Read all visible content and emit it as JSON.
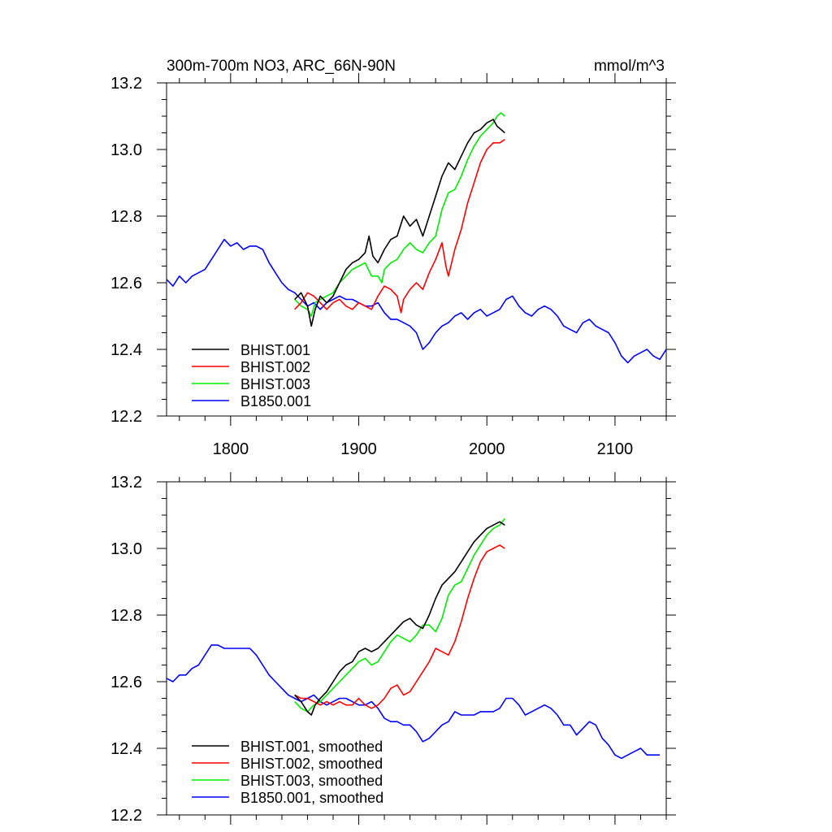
{
  "chart_data": [
    {
      "type": "line",
      "title": "300m-700m NO3, ARC_66N-90N",
      "units": "mmol/m^3",
      "xlim": [
        1750,
        2140
      ],
      "ylim": [
        12.2,
        13.2
      ],
      "x_ticks": [
        1800,
        1900,
        2000,
        2100
      ],
      "y_ticks": [
        12.2,
        12.4,
        12.6,
        12.8,
        13.0,
        13.2
      ],
      "legend_position": "bottom-left",
      "grid": false,
      "series": [
        {
          "name": "BHIST.001",
          "color": "#000000",
          "x": [
            1850,
            1855,
            1860,
            1863,
            1866,
            1870,
            1875,
            1880,
            1885,
            1890,
            1895,
            1900,
            1905,
            1908,
            1911,
            1915,
            1920,
            1925,
            1930,
            1935,
            1940,
            1945,
            1950,
            1955,
            1960,
            1965,
            1970,
            1975,
            1980,
            1985,
            1990,
            1995,
            2000,
            2005,
            2008,
            2011,
            2014
          ],
          "y": [
            12.55,
            12.57,
            12.53,
            12.47,
            12.52,
            12.56,
            12.54,
            12.56,
            12.6,
            12.64,
            12.66,
            12.67,
            12.69,
            12.74,
            12.68,
            12.66,
            12.7,
            12.73,
            12.74,
            12.8,
            12.77,
            12.79,
            12.74,
            12.8,
            12.86,
            12.92,
            12.96,
            12.94,
            12.98,
            13.02,
            13.05,
            13.06,
            13.08,
            13.09,
            13.07,
            13.06,
            13.05
          ]
        },
        {
          "name": "BHIST.002",
          "color": "#ff0000",
          "x": [
            1850,
            1855,
            1860,
            1865,
            1870,
            1875,
            1880,
            1885,
            1890,
            1895,
            1900,
            1905,
            1910,
            1915,
            1920,
            1925,
            1930,
            1933,
            1935,
            1940,
            1945,
            1950,
            1955,
            1960,
            1965,
            1968,
            1970,
            1975,
            1980,
            1985,
            1990,
            1995,
            2000,
            2005,
            2010,
            2014
          ],
          "y": [
            12.52,
            12.54,
            12.57,
            12.56,
            12.54,
            12.52,
            12.54,
            12.55,
            12.53,
            12.52,
            12.54,
            12.53,
            12.52,
            12.56,
            12.59,
            12.58,
            12.56,
            12.51,
            12.55,
            12.58,
            12.6,
            12.58,
            12.63,
            12.67,
            12.72,
            12.65,
            12.62,
            12.7,
            12.76,
            12.84,
            12.9,
            12.96,
            13.0,
            13.02,
            13.02,
            13.03
          ]
        },
        {
          "name": "BHIST.003",
          "color": "#00ee00",
          "x": [
            1850,
            1855,
            1860,
            1863,
            1866,
            1870,
            1875,
            1880,
            1885,
            1890,
            1895,
            1900,
            1905,
            1910,
            1915,
            1918,
            1920,
            1925,
            1930,
            1935,
            1940,
            1945,
            1950,
            1955,
            1960,
            1965,
            1970,
            1975,
            1980,
            1985,
            1990,
            1995,
            2000,
            2005,
            2008,
            2011,
            2014
          ],
          "y": [
            12.55,
            12.53,
            12.52,
            12.5,
            12.54,
            12.55,
            12.56,
            12.57,
            12.6,
            12.62,
            12.64,
            12.65,
            12.66,
            12.62,
            12.62,
            12.6,
            12.64,
            12.66,
            12.67,
            12.7,
            12.72,
            12.7,
            12.69,
            12.72,
            12.74,
            12.82,
            12.87,
            12.88,
            12.92,
            12.97,
            13.01,
            13.04,
            13.06,
            13.08,
            13.1,
            13.11,
            13.1
          ]
        },
        {
          "name": "B1850.001",
          "color": "#0000ff",
          "x": [
            1750,
            1755,
            1760,
            1765,
            1770,
            1775,
            1780,
            1785,
            1790,
            1795,
            1800,
            1805,
            1810,
            1815,
            1820,
            1825,
            1830,
            1835,
            1840,
            1845,
            1850,
            1855,
            1860,
            1865,
            1870,
            1875,
            1880,
            1885,
            1890,
            1895,
            1900,
            1905,
            1910,
            1915,
            1920,
            1925,
            1930,
            1935,
            1940,
            1945,
            1950,
            1955,
            1960,
            1965,
            1970,
            1975,
            1980,
            1985,
            1990,
            1995,
            2000,
            2005,
            2010,
            2015,
            2020,
            2025,
            2030,
            2035,
            2040,
            2045,
            2050,
            2055,
            2060,
            2065,
            2070,
            2075,
            2080,
            2085,
            2090,
            2095,
            2100,
            2105,
            2110,
            2115,
            2120,
            2125,
            2130,
            2135,
            2140
          ],
          "y": [
            12.61,
            12.59,
            12.62,
            12.6,
            12.62,
            12.63,
            12.64,
            12.67,
            12.7,
            12.73,
            12.71,
            12.72,
            12.7,
            12.71,
            12.71,
            12.7,
            12.66,
            12.63,
            12.6,
            12.58,
            12.57,
            12.55,
            12.53,
            12.54,
            12.52,
            12.54,
            12.55,
            12.56,
            12.55,
            12.55,
            12.54,
            12.53,
            12.53,
            12.54,
            12.51,
            12.49,
            12.49,
            12.48,
            12.47,
            12.45,
            12.4,
            12.42,
            12.45,
            12.47,
            12.48,
            12.5,
            12.51,
            12.49,
            12.51,
            12.52,
            12.5,
            12.51,
            12.52,
            12.55,
            12.56,
            12.53,
            12.51,
            12.5,
            12.52,
            12.53,
            12.52,
            12.5,
            12.47,
            12.46,
            12.45,
            12.48,
            12.49,
            12.47,
            12.46,
            12.45,
            12.42,
            12.38,
            12.36,
            12.38,
            12.39,
            12.4,
            12.38,
            12.37,
            12.4
          ]
        }
      ]
    },
    {
      "type": "line",
      "xlim": [
        1750,
        2140
      ],
      "ylim": [
        12.2,
        13.2
      ],
      "y_ticks": [
        12.2,
        12.4,
        12.6,
        12.8,
        13.0,
        13.2
      ],
      "legend_position": "bottom-left",
      "grid": false,
      "series": [
        {
          "name": "BHIST.001, smoothed",
          "color": "#000000",
          "x": [
            1850,
            1855,
            1860,
            1863,
            1866,
            1870,
            1875,
            1880,
            1885,
            1890,
            1895,
            1900,
            1905,
            1910,
            1915,
            1920,
            1925,
            1930,
            1935,
            1940,
            1945,
            1950,
            1955,
            1960,
            1965,
            1970,
            1975,
            1980,
            1985,
            1990,
            1995,
            2000,
            2005,
            2010,
            2014
          ],
          "y": [
            12.56,
            12.54,
            12.51,
            12.5,
            12.53,
            12.55,
            12.57,
            12.6,
            12.63,
            12.65,
            12.66,
            12.69,
            12.7,
            12.69,
            12.7,
            12.72,
            12.74,
            12.76,
            12.78,
            12.79,
            12.77,
            12.76,
            12.8,
            12.85,
            12.89,
            12.91,
            12.93,
            12.96,
            12.99,
            13.02,
            13.04,
            13.06,
            13.07,
            13.08,
            13.07
          ]
        },
        {
          "name": "BHIST.002, smoothed",
          "color": "#ff0000",
          "x": [
            1850,
            1855,
            1860,
            1865,
            1870,
            1875,
            1880,
            1885,
            1890,
            1895,
            1900,
            1905,
            1910,
            1915,
            1920,
            1925,
            1930,
            1935,
            1940,
            1945,
            1950,
            1955,
            1960,
            1965,
            1970,
            1975,
            1980,
            1985,
            1990,
            1995,
            2000,
            2005,
            2010,
            2014
          ],
          "y": [
            12.56,
            12.55,
            12.55,
            12.54,
            12.53,
            12.54,
            12.53,
            12.54,
            12.53,
            12.53,
            12.55,
            12.53,
            12.52,
            12.53,
            12.55,
            12.58,
            12.59,
            12.56,
            12.57,
            12.6,
            12.63,
            12.66,
            12.7,
            12.69,
            12.68,
            12.72,
            12.78,
            12.85,
            12.91,
            12.96,
            12.99,
            13.0,
            13.01,
            13.0
          ]
        },
        {
          "name": "BHIST.003, smoothed",
          "color": "#00ee00",
          "x": [
            1850,
            1855,
            1860,
            1865,
            1870,
            1875,
            1880,
            1885,
            1890,
            1895,
            1900,
            1905,
            1910,
            1915,
            1920,
            1925,
            1930,
            1935,
            1940,
            1945,
            1950,
            1955,
            1960,
            1965,
            1970,
            1975,
            1980,
            1985,
            1990,
            1995,
            2000,
            2005,
            2010,
            2014
          ],
          "y": [
            12.54,
            12.52,
            12.51,
            12.53,
            12.54,
            12.56,
            12.58,
            12.6,
            12.62,
            12.64,
            12.66,
            12.67,
            12.65,
            12.66,
            12.69,
            12.72,
            12.74,
            12.73,
            12.72,
            12.74,
            12.77,
            12.77,
            12.75,
            12.79,
            12.86,
            12.89,
            12.9,
            12.94,
            12.98,
            13.01,
            13.04,
            13.06,
            13.07,
            13.09
          ]
        },
        {
          "name": "B1850.001, smoothed",
          "color": "#0000ff",
          "x": [
            1750,
            1755,
            1760,
            1765,
            1770,
            1775,
            1780,
            1785,
            1790,
            1795,
            1800,
            1805,
            1810,
            1815,
            1820,
            1825,
            1830,
            1835,
            1840,
            1845,
            1850,
            1855,
            1860,
            1865,
            1870,
            1875,
            1880,
            1885,
            1890,
            1895,
            1900,
            1905,
            1910,
            1915,
            1920,
            1925,
            1930,
            1935,
            1940,
            1945,
            1950,
            1955,
            1960,
            1965,
            1970,
            1975,
            1980,
            1985,
            1990,
            1995,
            2000,
            2005,
            2010,
            2015,
            2020,
            2025,
            2030,
            2035,
            2040,
            2045,
            2050,
            2055,
            2060,
            2065,
            2070,
            2075,
            2080,
            2085,
            2090,
            2095,
            2100,
            2105,
            2110,
            2115,
            2120,
            2125,
            2130,
            2135
          ],
          "y": [
            12.61,
            12.6,
            12.62,
            12.62,
            12.64,
            12.65,
            12.68,
            12.71,
            12.71,
            12.7,
            12.7,
            12.7,
            12.7,
            12.7,
            12.68,
            12.65,
            12.62,
            12.6,
            12.58,
            12.56,
            12.55,
            12.54,
            12.55,
            12.56,
            12.54,
            12.53,
            12.54,
            12.55,
            12.55,
            12.54,
            12.53,
            12.53,
            12.54,
            12.52,
            12.49,
            12.48,
            12.48,
            12.47,
            12.47,
            12.45,
            12.42,
            12.43,
            12.45,
            12.47,
            12.48,
            12.51,
            12.5,
            12.5,
            12.5,
            12.51,
            12.51,
            12.51,
            12.52,
            12.55,
            12.55,
            12.53,
            12.5,
            12.51,
            12.52,
            12.53,
            12.52,
            12.5,
            12.47,
            12.47,
            12.44,
            12.46,
            12.48,
            12.47,
            12.43,
            12.41,
            12.38,
            12.37,
            12.38,
            12.39,
            12.4,
            12.38,
            12.38,
            12.38
          ]
        }
      ]
    }
  ]
}
